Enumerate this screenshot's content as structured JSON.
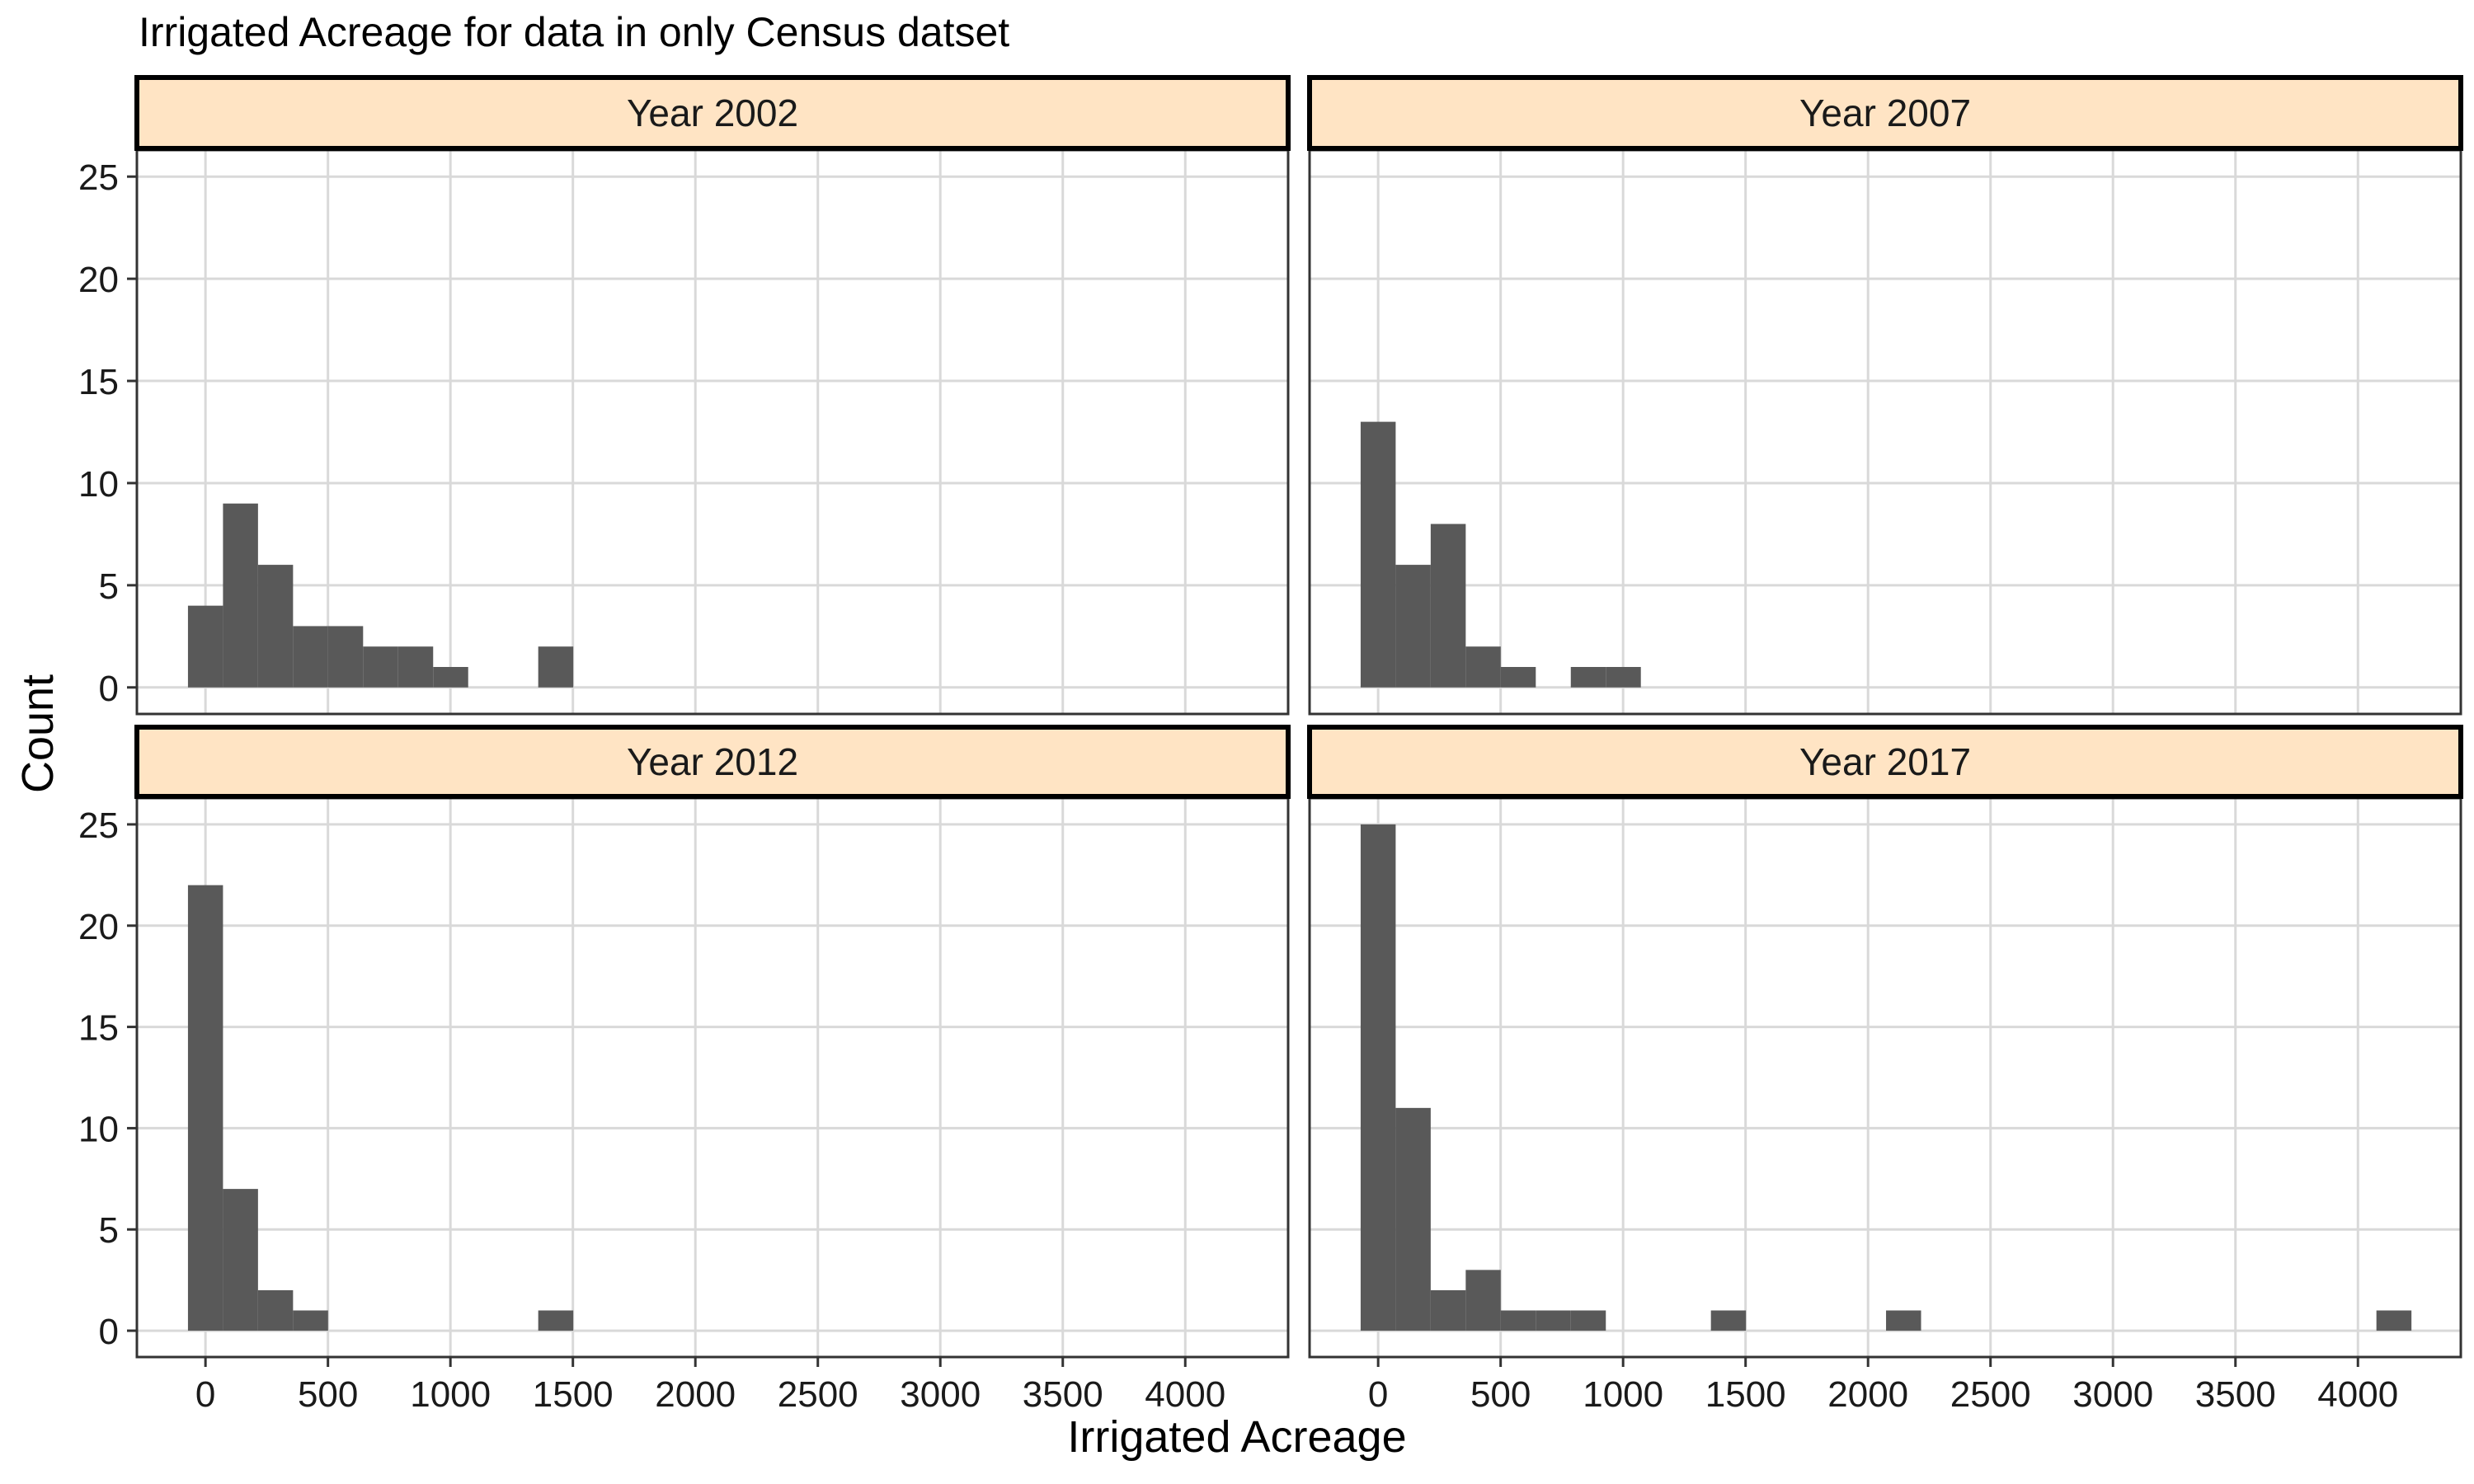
{
  "title": "Irrigated Acreage for data in only Census datset",
  "chart_data": {
    "type": "bar",
    "title": "Irrigated Acreage for data in only Census datset",
    "xlabel": "Irrigated Acreage",
    "ylabel": "Count",
    "xlim": [
      -280,
      4420
    ],
    "ylim": [
      -1.3,
      26.3
    ],
    "x_ticks": [
      0,
      500,
      1000,
      1500,
      2000,
      2500,
      3000,
      3500,
      4000
    ],
    "x_tick_labels": [
      "0",
      "500",
      "1000",
      "1500",
      "2000",
      "2500",
      "3000",
      "3500",
      "4000"
    ],
    "y_ticks": [
      0,
      5,
      10,
      15,
      20,
      25
    ],
    "y_tick_labels": [
      "0",
      "5",
      "10",
      "15",
      "20",
      "25"
    ],
    "bin_width": 143,
    "grid": true,
    "bar_color": "#595959",
    "strip_fill": "#FFE4C4",
    "facets": [
      {
        "label": "Year 2002",
        "bins": [
          {
            "x": 0,
            "count": 4
          },
          {
            "x": 143,
            "count": 9
          },
          {
            "x": 286,
            "count": 6
          },
          {
            "x": 429,
            "count": 3
          },
          {
            "x": 572,
            "count": 3
          },
          {
            "x": 715,
            "count": 2
          },
          {
            "x": 858,
            "count": 2
          },
          {
            "x": 1001,
            "count": 1
          },
          {
            "x": 1430,
            "count": 2
          }
        ]
      },
      {
        "label": "Year 2007",
        "bins": [
          {
            "x": 0,
            "count": 13
          },
          {
            "x": 143,
            "count": 6
          },
          {
            "x": 286,
            "count": 8
          },
          {
            "x": 429,
            "count": 2
          },
          {
            "x": 572,
            "count": 1
          },
          {
            "x": 858,
            "count": 1
          },
          {
            "x": 1001,
            "count": 1
          }
        ]
      },
      {
        "label": "Year 2012",
        "bins": [
          {
            "x": 0,
            "count": 22
          },
          {
            "x": 143,
            "count": 7
          },
          {
            "x": 286,
            "count": 2
          },
          {
            "x": 429,
            "count": 1
          },
          {
            "x": 1430,
            "count": 1
          }
        ]
      },
      {
        "label": "Year 2017",
        "bins": [
          {
            "x": 0,
            "count": 25
          },
          {
            "x": 143,
            "count": 11
          },
          {
            "x": 286,
            "count": 2
          },
          {
            "x": 429,
            "count": 3
          },
          {
            "x": 572,
            "count": 1
          },
          {
            "x": 715,
            "count": 1
          },
          {
            "x": 858,
            "count": 1
          },
          {
            "x": 1430,
            "count": 1
          },
          {
            "x": 2145,
            "count": 1
          },
          {
            "x": 4147,
            "count": 1
          }
        ]
      }
    ]
  }
}
